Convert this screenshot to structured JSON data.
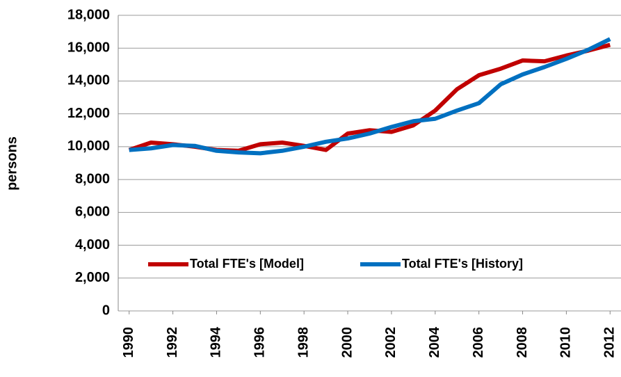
{
  "chart_data": {
    "type": "line",
    "y_label": "persons",
    "x": [
      1990,
      1991,
      1992,
      1993,
      1994,
      1995,
      1996,
      1997,
      1998,
      1999,
      2000,
      2001,
      2002,
      2003,
      2004,
      2005,
      2006,
      2007,
      2008,
      2009,
      2010,
      2011,
      2012
    ],
    "series": [
      {
        "name": "Total FTE's [Model]",
        "color": "#c00000",
        "values": [
          9800,
          10250,
          10150,
          10000,
          9800,
          9750,
          10150,
          10250,
          10050,
          9800,
          10800,
          11000,
          10900,
          11300,
          12200,
          13500,
          14350,
          14750,
          15250,
          15200,
          15550,
          15850,
          16200
        ]
      },
      {
        "name": "Total FTE's [History]",
        "color": "#0070c0",
        "values": [
          9800,
          9900,
          10100,
          10050,
          9750,
          9650,
          9600,
          9750,
          10000,
          10300,
          10500,
          10800,
          11200,
          11550,
          11700,
          12200,
          12650,
          13800,
          14400,
          14850,
          15350,
          15900,
          16550
        ]
      }
    ],
    "xlim": [
      1989.5,
      2012.5
    ],
    "xticks": [
      1990,
      1992,
      1994,
      1996,
      1998,
      2000,
      2002,
      2004,
      2006,
      2008,
      2010,
      2012
    ],
    "ylim": [
      0,
      18000
    ],
    "yticks": [
      0,
      {
        "value": 2000,
        "label": "2,000"
      },
      {
        "value": 4000,
        "label": "4,000"
      },
      {
        "value": 6000,
        "label": "6,000"
      },
      {
        "value": 8000,
        "label": "8,000"
      },
      {
        "value": 10000,
        "label": "10,000"
      },
      {
        "value": 12000,
        "label": "12,000"
      },
      {
        "value": 14000,
        "label": "14,000"
      },
      {
        "value": 16000,
        "label": "16,000"
      },
      {
        "value": 18000,
        "label": "18,000"
      }
    ],
    "grid": true
  }
}
